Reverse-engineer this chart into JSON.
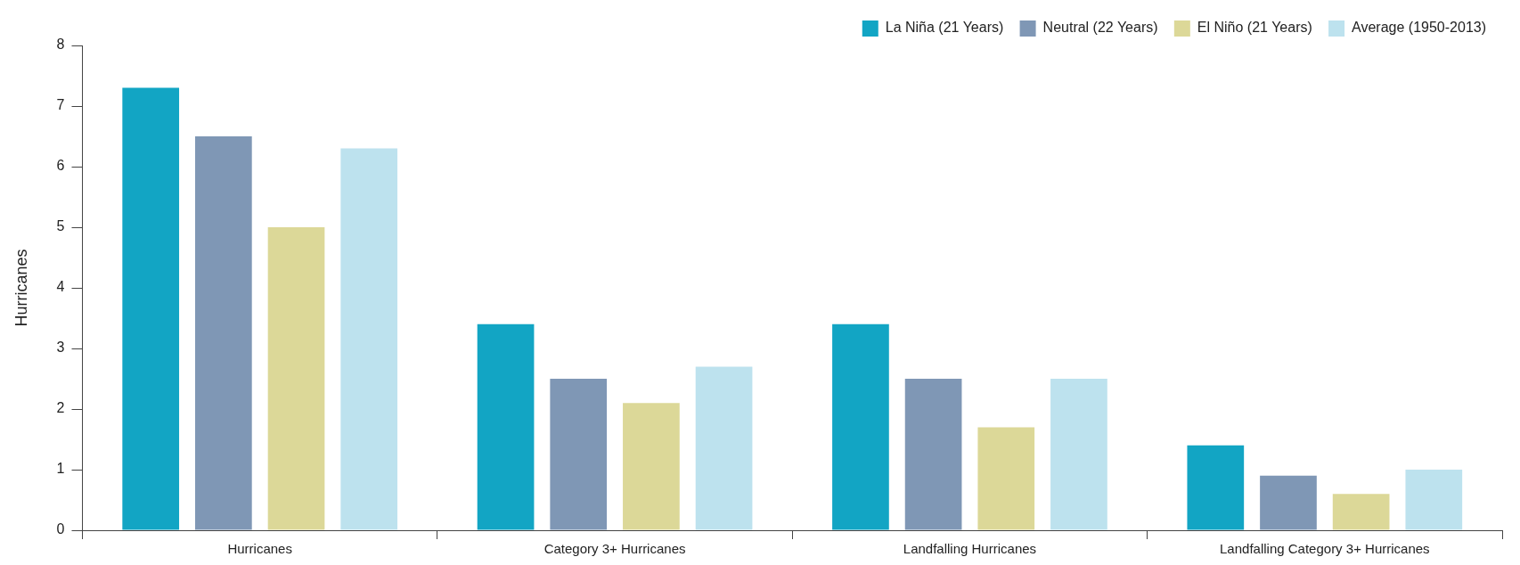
{
  "chart_data": {
    "type": "bar",
    "ylabel": "Hurricanes",
    "categories": [
      "Hurricanes",
      "Category 3+ Hurricanes",
      "Landfalling Hurricanes",
      "Landfalling Category 3+ Hurricanes"
    ],
    "series": [
      {
        "name": "La Niña (21 Years)",
        "color": "#12a5c4",
        "values": [
          7.3,
          3.4,
          3.4,
          1.4
        ]
      },
      {
        "name": "Neutral (22 Years)",
        "color": "#7f97b5",
        "values": [
          6.5,
          2.5,
          2.5,
          0.9
        ]
      },
      {
        "name": "El Niño (21 Years)",
        "color": "#dcd898",
        "values": [
          5.0,
          2.1,
          1.7,
          0.6
        ]
      },
      {
        "name": "Average (1950-2013)",
        "color": "#bde2ee",
        "values": [
          6.3,
          2.7,
          2.5,
          1.0
        ]
      }
    ],
    "ylim": [
      0,
      8
    ],
    "yticks": [
      0,
      1,
      2,
      3,
      4,
      5,
      6,
      7,
      8
    ],
    "grid": false,
    "legend": "top right"
  }
}
